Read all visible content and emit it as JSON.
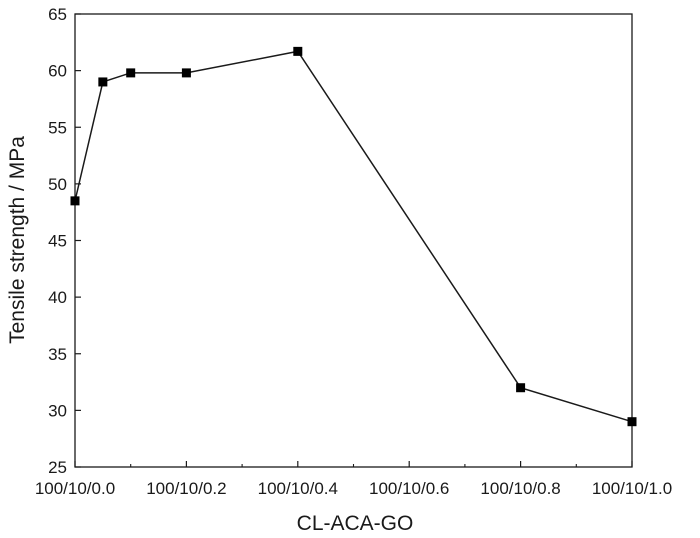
{
  "chart_data": {
    "type": "line",
    "title": "",
    "xlabel": "CL-ACA-GO",
    "ylabel": "Tensile strength / MPa",
    "xlim": [
      0,
      1.0
    ],
    "ylim": [
      25,
      65
    ],
    "x_ticks": [
      {
        "value": 0.0,
        "label": "100/10/0.0"
      },
      {
        "value": 0.2,
        "label": "100/10/0.2"
      },
      {
        "value": 0.4,
        "label": "100/10/0.4"
      },
      {
        "value": 0.6,
        "label": "100/10/0.6"
      },
      {
        "value": 0.8,
        "label": "100/10/0.8"
      },
      {
        "value": 1.0,
        "label": "100/10/1.0"
      }
    ],
    "y_ticks": [
      25,
      30,
      35,
      40,
      45,
      50,
      55,
      60,
      65
    ],
    "grid": false,
    "series": [
      {
        "x": [
          0.0,
          0.05,
          0.1,
          0.2,
          0.4,
          0.8,
          1.0
        ],
        "y": [
          48.5,
          59.0,
          59.8,
          59.8,
          61.7,
          32.0,
          29.0
        ]
      }
    ],
    "colors": {
      "line": "#1a1a1a",
      "marker": "#000000",
      "axis": "#1a1a1a"
    }
  }
}
